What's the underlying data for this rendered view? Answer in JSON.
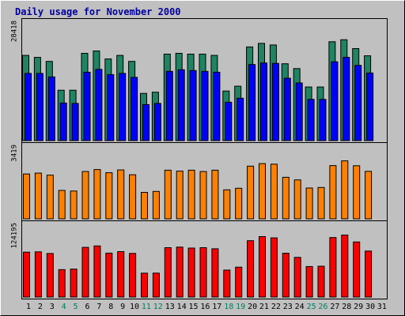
{
  "chart_data": {
    "type": "bar",
    "title": "Daily usage for November 2000",
    "categories": [
      "1",
      "2",
      "3",
      "4",
      "5",
      "6",
      "7",
      "8",
      "9",
      "10",
      "11",
      "12",
      "13",
      "14",
      "15",
      "16",
      "17",
      "18",
      "19",
      "20",
      "21",
      "22",
      "23",
      "24",
      "25",
      "26",
      "27",
      "28",
      "29",
      "30",
      "31"
    ],
    "weekend_days": [
      "4",
      "5",
      "11",
      "12",
      "18",
      "19",
      "25",
      "26"
    ],
    "panels": [
      {
        "ymax_label": "28418",
        "ymax": 28418,
        "series": [
          {
            "color": "#1e8464",
            "values": [
              21300,
              20800,
              19800,
              12600,
              12600,
              21800,
              22400,
              20400,
              21300,
              19800,
              11800,
              12100,
              21600,
              21800,
              21600,
              21600,
              21300,
              12400,
              13600,
              23400,
              24300,
              23900,
              19200,
              18000,
              13400,
              13400,
              24700,
              25200,
              23000,
              21200,
              null
            ]
          },
          {
            "color": "#0000ff",
            "values": [
              16800,
              16800,
              15900,
              9400,
              9300,
              17100,
              17800,
              16500,
              16800,
              15800,
              9000,
              9300,
              17300,
              17700,
              17500,
              17300,
              17100,
              9600,
              10600,
              19000,
              19400,
              19300,
              15600,
              14400,
              10300,
              10300,
              19700,
              20800,
              18800,
              16900,
              null
            ]
          }
        ]
      },
      {
        "ymax_label": "3419",
        "ymax": 3419,
        "series": [
          {
            "color": "#ff8000",
            "values": [
              2260,
              2300,
              2200,
              1430,
              1400,
              2380,
              2480,
              2320,
              2460,
              2220,
              1330,
              1380,
              2450,
              2400,
              2450,
              2380,
              2450,
              1460,
              1540,
              2650,
              2780,
              2750,
              2090,
              1960,
              1550,
              1580,
              2680,
              2920,
              2670,
              2390,
              null
            ]
          }
        ]
      },
      {
        "ymax_label": "124195",
        "ymax": 124195,
        "series": [
          {
            "color": "#ff0000",
            "values": [
              82000,
              82600,
              79600,
              50100,
              51100,
              90800,
              93500,
              80300,
              83000,
              79700,
              43600,
              43800,
              90300,
              91200,
              89500,
              90300,
              88200,
              49300,
              54600,
              103000,
              110500,
              108200,
              80200,
              72500,
              55700,
              56300,
              108700,
              113300,
              100600,
              84000,
              null
            ]
          }
        ]
      }
    ]
  }
}
